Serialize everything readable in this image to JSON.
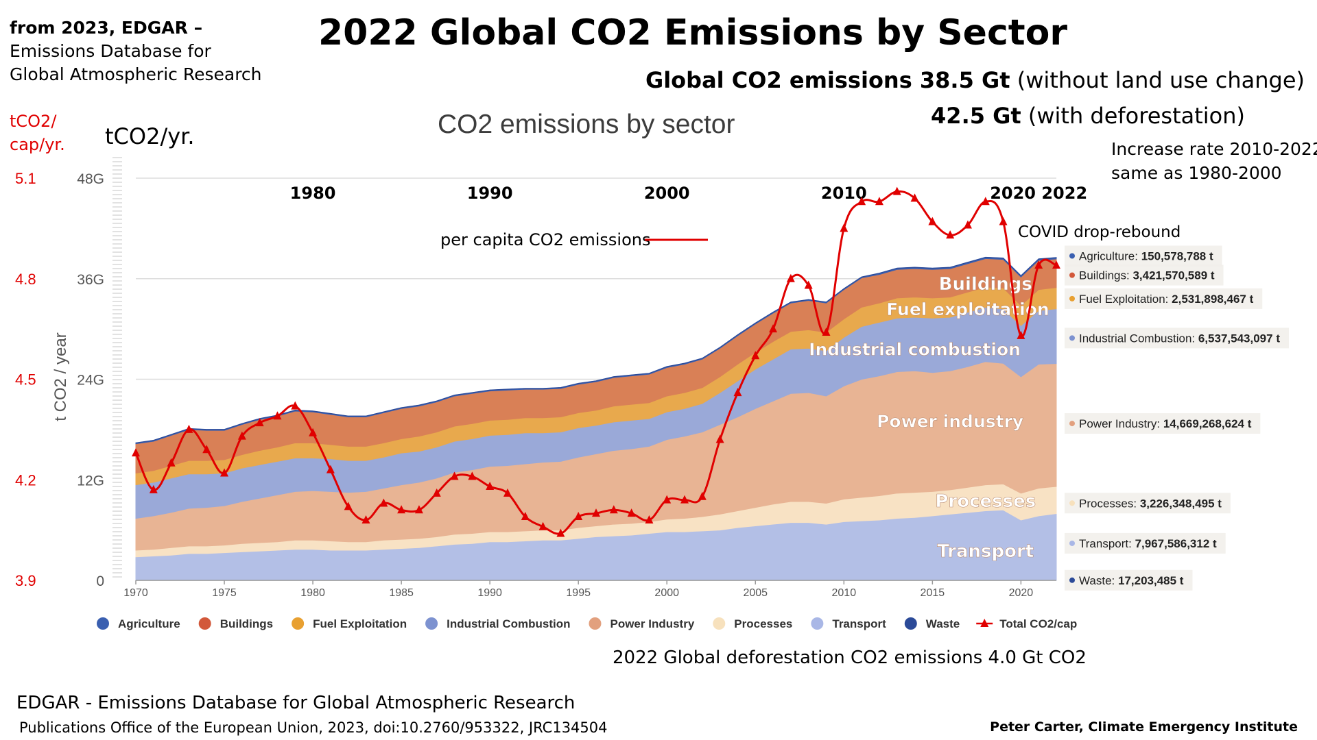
{
  "source_note": {
    "line1": "from 2023, EDGAR –",
    "line2": "Emissions Database for",
    "line3": "Global Atmospheric Research"
  },
  "title": "2022 Global CO2 Emissions by Sector",
  "totals": {
    "line1_bold": "Global CO2 emissions 38.5 Gt",
    "line1_rest": " (without land use change)",
    "line2_bold": "42.5 Gt",
    "line2_rest": " (with deforestation)"
  },
  "increase_note": {
    "line1": "Increase rate 2010-2022",
    "line2": "same as 1980-2000"
  },
  "per_capita_unit": {
    "line1": "tCO2/",
    "line2": "cap/yr."
  },
  "annual_unit": "tCO2/yr.",
  "covid_note": "COVID drop-rebound",
  "deforestation_note": "2022 Global deforestation CO2 emissions 4.0 Gt CO2",
  "footer": {
    "line1": "EDGAR - Emissions Database for Global Atmospheric Research",
    "line2": "Publications Office of the European Union, 2023, doi:10.2760/953322, JRC134504",
    "author": "Peter Carter, Climate Emergency Institute"
  },
  "chart_data": {
    "type": "area",
    "title": "CO2 emissions by sector",
    "ylabel": "t CO2 / year",
    "stacked": true,
    "ylim": [
      0,
      48
    ],
    "y_unit": "Gt",
    "y_ticks": [
      "0",
      "12G",
      "24G",
      "36G",
      "48G"
    ],
    "y2_ticks": [
      "3.9",
      "4.2",
      "4.5",
      "4.8",
      "5.1"
    ],
    "y2lim": [
      3.9,
      5.1
    ],
    "x_ticks": [
      "1970",
      "1975",
      "1980",
      "1985",
      "1990",
      "1995",
      "2000",
      "2005",
      "2010",
      "2015",
      "2020"
    ],
    "decade_labels": [
      "1980",
      "1990",
      "2000",
      "2010",
      "2020 2022"
    ],
    "x": [
      1970,
      1971,
      1972,
      1973,
      1974,
      1975,
      1976,
      1977,
      1978,
      1979,
      1980,
      1981,
      1982,
      1983,
      1984,
      1985,
      1986,
      1987,
      1988,
      1989,
      1990,
      1991,
      1992,
      1993,
      1994,
      1995,
      1996,
      1997,
      1998,
      1999,
      2000,
      2001,
      2002,
      2003,
      2004,
      2005,
      2006,
      2007,
      2008,
      2009,
      2010,
      2011,
      2012,
      2013,
      2014,
      2015,
      2016,
      2017,
      2018,
      2019,
      2020,
      2021,
      2022
    ],
    "series": [
      {
        "name": "Transport",
        "color": "#b3bfe6",
        "values": [
          2.8,
          2.9,
          3.0,
          3.2,
          3.2,
          3.3,
          3.4,
          3.5,
          3.6,
          3.7,
          3.7,
          3.6,
          3.6,
          3.6,
          3.7,
          3.8,
          3.9,
          4.1,
          4.3,
          4.4,
          4.6,
          4.6,
          4.7,
          4.8,
          4.8,
          5.0,
          5.2,
          5.3,
          5.4,
          5.6,
          5.8,
          5.8,
          5.9,
          6.0,
          6.3,
          6.5,
          6.7,
          6.9,
          6.9,
          6.7,
          7.0,
          7.1,
          7.2,
          7.4,
          7.5,
          7.7,
          7.9,
          8.1,
          8.3,
          8.4,
          7.2,
          7.7,
          7.97
        ]
      },
      {
        "name": "Processes",
        "color": "#f8e2c4",
        "values": [
          0.8,
          0.8,
          0.9,
          0.9,
          0.9,
          0.9,
          1.0,
          1.0,
          1.0,
          1.1,
          1.1,
          1.1,
          1.0,
          1.0,
          1.1,
          1.1,
          1.1,
          1.1,
          1.2,
          1.2,
          1.2,
          1.2,
          1.2,
          1.2,
          1.2,
          1.3,
          1.3,
          1.4,
          1.4,
          1.4,
          1.5,
          1.6,
          1.7,
          1.9,
          2.0,
          2.2,
          2.4,
          2.5,
          2.5,
          2.5,
          2.7,
          2.8,
          2.9,
          3.0,
          3.0,
          2.9,
          2.9,
          3.0,
          3.1,
          3.1,
          3.2,
          3.3,
          3.23
        ]
      },
      {
        "name": "Power Industry",
        "color": "#e8b494",
        "values": [
          3.8,
          4.0,
          4.2,
          4.5,
          4.6,
          4.7,
          5.0,
          5.3,
          5.6,
          5.8,
          5.9,
          5.9,
          5.9,
          6.0,
          6.2,
          6.5,
          6.7,
          7.0,
          7.4,
          7.6,
          7.8,
          7.9,
          8.0,
          8.1,
          8.2,
          8.4,
          8.6,
          8.8,
          8.9,
          9.0,
          9.5,
          9.8,
          10.1,
          10.7,
          11.2,
          11.8,
          12.3,
          12.9,
          13.0,
          12.8,
          13.5,
          14.1,
          14.3,
          14.5,
          14.5,
          14.2,
          14.2,
          14.4,
          14.7,
          14.4,
          13.9,
          14.8,
          14.67
        ]
      },
      {
        "name": "Industrial Combustion",
        "color": "#9aa9d8",
        "values": [
          4.0,
          4.0,
          4.1,
          4.1,
          4.0,
          3.9,
          4.0,
          4.0,
          4.0,
          4.0,
          3.9,
          3.9,
          3.8,
          3.7,
          3.7,
          3.8,
          3.7,
          3.7,
          3.7,
          3.7,
          3.7,
          3.7,
          3.7,
          3.5,
          3.5,
          3.5,
          3.4,
          3.4,
          3.4,
          3.3,
          3.3,
          3.3,
          3.4,
          3.8,
          4.3,
          4.7,
          5.0,
          5.3,
          5.3,
          5.4,
          5.8,
          6.3,
          6.4,
          6.4,
          6.4,
          6.5,
          6.4,
          6.5,
          6.5,
          6.5,
          6.1,
          6.4,
          6.54
        ]
      },
      {
        "name": "Fuel Exploitation",
        "color": "#e8a94d",
        "values": [
          1.4,
          1.4,
          1.5,
          1.6,
          1.6,
          1.6,
          1.6,
          1.7,
          1.7,
          1.8,
          1.8,
          1.7,
          1.7,
          1.7,
          1.7,
          1.7,
          1.8,
          1.8,
          1.8,
          1.8,
          1.8,
          1.8,
          1.8,
          1.8,
          1.8,
          1.8,
          1.8,
          1.9,
          1.9,
          1.9,
          1.9,
          1.9,
          1.9,
          1.9,
          2.0,
          2.0,
          2.1,
          2.1,
          2.2,
          2.2,
          2.2,
          2.3,
          2.3,
          2.4,
          2.4,
          2.4,
          2.4,
          2.4,
          2.4,
          2.5,
          2.4,
          2.5,
          2.53
        ]
      },
      {
        "name": "Buildings",
        "color": "#d98056",
        "values": [
          3.5,
          3.5,
          3.6,
          3.7,
          3.6,
          3.5,
          3.6,
          3.7,
          3.7,
          3.8,
          3.7,
          3.6,
          3.5,
          3.5,
          3.6,
          3.6,
          3.6,
          3.6,
          3.6,
          3.6,
          3.5,
          3.5,
          3.4,
          3.4,
          3.4,
          3.4,
          3.4,
          3.4,
          3.4,
          3.4,
          3.4,
          3.4,
          3.4,
          3.4,
          3.4,
          3.4,
          3.4,
          3.4,
          3.5,
          3.5,
          3.5,
          3.5,
          3.4,
          3.4,
          3.4,
          3.4,
          3.4,
          3.4,
          3.4,
          3.4,
          3.4,
          3.5,
          3.42
        ]
      },
      {
        "name": "Agriculture",
        "color": "#3a5fb0",
        "values": [
          0.1,
          0.1,
          0.1,
          0.1,
          0.1,
          0.1,
          0.1,
          0.1,
          0.1,
          0.1,
          0.1,
          0.1,
          0.1,
          0.1,
          0.1,
          0.1,
          0.1,
          0.1,
          0.1,
          0.1,
          0.1,
          0.1,
          0.1,
          0.1,
          0.1,
          0.1,
          0.1,
          0.1,
          0.1,
          0.1,
          0.1,
          0.1,
          0.1,
          0.1,
          0.1,
          0.1,
          0.1,
          0.1,
          0.1,
          0.1,
          0.1,
          0.1,
          0.15,
          0.15,
          0.15,
          0.15,
          0.15,
          0.15,
          0.15,
          0.15,
          0.15,
          0.15,
          0.15
        ]
      },
      {
        "name": "Waste",
        "color": "#2b4a98",
        "values": [
          0.02,
          0.02,
          0.02,
          0.02,
          0.02,
          0.02,
          0.02,
          0.02,
          0.02,
          0.02,
          0.02,
          0.02,
          0.02,
          0.02,
          0.02,
          0.02,
          0.02,
          0.02,
          0.02,
          0.02,
          0.02,
          0.02,
          0.02,
          0.02,
          0.02,
          0.02,
          0.02,
          0.02,
          0.02,
          0.02,
          0.02,
          0.02,
          0.02,
          0.02,
          0.02,
          0.02,
          0.02,
          0.02,
          0.02,
          0.02,
          0.02,
          0.02,
          0.02,
          0.02,
          0.02,
          0.02,
          0.02,
          0.02,
          0.02,
          0.02,
          0.02,
          0.02,
          0.02
        ]
      }
    ],
    "per_capita": {
      "name": "Total CO2/cap",
      "legend_label": "per capita CO2 emissions",
      "color": "#e00000",
      "values": [
        4.28,
        4.17,
        4.25,
        4.35,
        4.29,
        4.22,
        4.33,
        4.37,
        4.39,
        4.42,
        4.34,
        4.23,
        4.12,
        4.08,
        4.13,
        4.11,
        4.11,
        4.16,
        4.21,
        4.21,
        4.18,
        4.16,
        4.09,
        4.06,
        4.04,
        4.09,
        4.1,
        4.11,
        4.1,
        4.08,
        4.14,
        4.14,
        4.15,
        4.32,
        4.46,
        4.57,
        4.65,
        4.8,
        4.78,
        4.64,
        4.95,
        5.03,
        5.03,
        5.06,
        5.04,
        4.97,
        4.93,
        4.96,
        5.03,
        4.97,
        4.63,
        4.84,
        4.84
      ]
    },
    "area_labels": [
      {
        "text": "Buildings",
        "x": 2018,
        "y": 35.4
      },
      {
        "text": "Fuel exploitation",
        "x": 2017,
        "y": 32.4
      },
      {
        "text": "Industrial combustion",
        "x": 2014,
        "y": 27.6
      },
      {
        "text": "Power industry",
        "x": 2016,
        "y": 19.0
      },
      {
        "text": "Processes",
        "x": 2018,
        "y": 9.5
      },
      {
        "text": "Transport",
        "x": 2018,
        "y": 3.5
      }
    ],
    "tooltips": [
      {
        "series": "Agriculture",
        "text_name": "Agriculture: ",
        "text_value": "150,578,788 t",
        "y_level": 38.8
      },
      {
        "series": "Buildings",
        "text_name": "Buildings: ",
        "text_value": "3,421,570,589 t",
        "y_level": 36.5
      },
      {
        "series": "Fuel Exploitation",
        "text_name": "Fuel Exploitation: ",
        "text_value": "2,531,898,467 t",
        "y_level": 33.7
      },
      {
        "series": "Industrial Combustion",
        "text_name": "Industrial Combustion: ",
        "text_value": "6,537,543,097 t",
        "y_level": 29.0
      },
      {
        "series": "Power Industry",
        "text_name": "Power Industry: ",
        "text_value": "14,669,268,624 t",
        "y_level": 18.8
      },
      {
        "series": "Processes",
        "text_name": "Processes: ",
        "text_value": "3,226,348,495 t",
        "y_level": 9.3
      },
      {
        "series": "Transport",
        "text_name": "Transport: ",
        "text_value": "7,967,586,312 t",
        "y_level": 4.5
      },
      {
        "series": "Waste",
        "text_name": "Waste: ",
        "text_value": "17,203,485 t",
        "y_level": 0.1
      }
    ],
    "legend": [
      {
        "label": "Agriculture",
        "color": "#3a5fb0"
      },
      {
        "label": "Buildings",
        "color": "#d2583a"
      },
      {
        "label": "Fuel Exploitation",
        "color": "#e8a031"
      },
      {
        "label": "Industrial Combustion",
        "color": "#7d92d0"
      },
      {
        "label": "Power Industry",
        "color": "#e2a07e"
      },
      {
        "label": "Processes",
        "color": "#f7e1bd"
      },
      {
        "label": "Transport",
        "color": "#a9b7e6"
      },
      {
        "label": "Waste",
        "color": "#2b4a98"
      },
      {
        "label": "Total CO2/cap",
        "color": "#e00000",
        "kind": "line"
      }
    ],
    "legend_position": "bottom",
    "grid": true
  }
}
